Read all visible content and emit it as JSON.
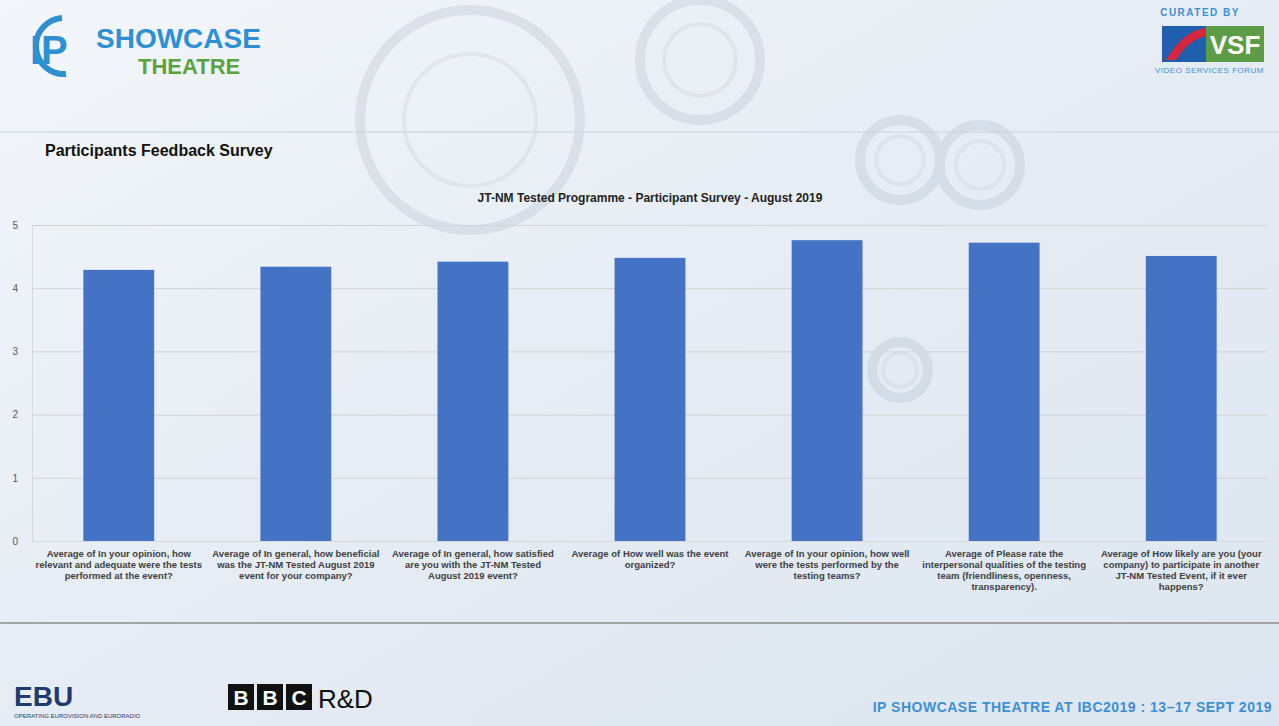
{
  "header": {
    "logo_ip": "IP",
    "logo_showcase": "SHOWCASE",
    "logo_theatre": "THEATRE",
    "curated_by": "CURATED BY",
    "vsf_logo": "VSF",
    "vsf_name": "VIDEO SERVICES FORUM",
    "section_title": "Participants Feedback Survey"
  },
  "chart_data": {
    "type": "bar",
    "title": "JT-NM Tested Programme - Participant Survey - August 2019",
    "categories": [
      "Average of In your opinion, how relevant and adequate were the tests performed at the event?",
      "Average of In general, how beneficial was the JT-NM Tested August 2019 event for your company?",
      "Average of In general, how satisfied are you with the JT-NM Tested August 2019 event?",
      "Average of How well was the event organized?",
      "Average of In your opinion, how well were the tests performed by the testing teams?",
      "Average of Please rate the interpersonal qualities of the testing team (friendliness, openness, transparency).",
      "Average of How likely are you (your company) to participate in another JT-NM Tested Event, if it ever happens?"
    ],
    "values": [
      4.29,
      4.34,
      4.42,
      4.48,
      4.76,
      4.72,
      4.51
    ],
    "color": "#4472c4",
    "ylim": [
      0,
      5
    ],
    "yticks": [
      0,
      1,
      2,
      3,
      4,
      5
    ],
    "grid": true
  },
  "footer": {
    "ebu_logo": "EBU",
    "ebu_tagline": "OPERATING EUROVISION AND EURORADIO",
    "bbc_letters": [
      "B",
      "B",
      "C"
    ],
    "bbc_rd": "R&D",
    "event": "IP SHOWCASE THEATRE AT IBC2019 : 13–17 SEPT 2019"
  }
}
